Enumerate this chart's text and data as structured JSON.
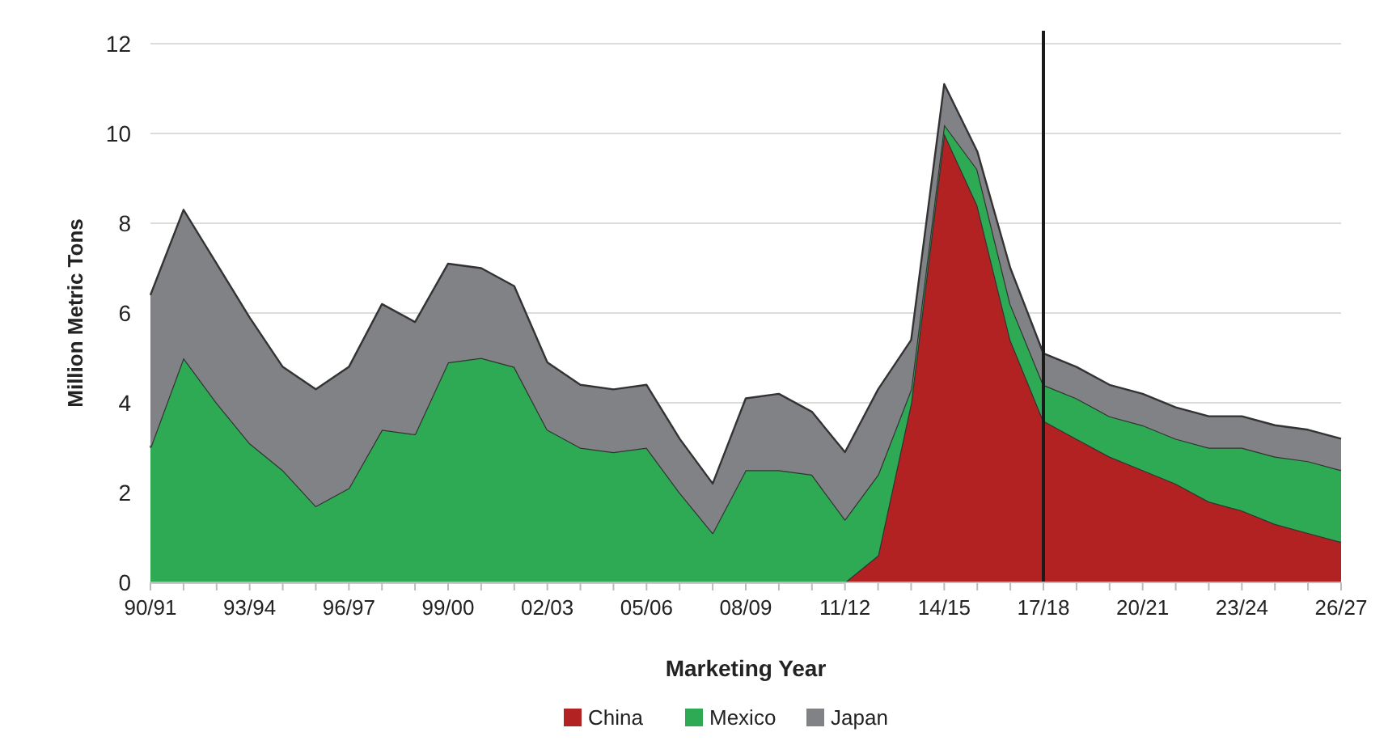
{
  "chart_data": {
    "type": "area",
    "stacked": true,
    "xlabel": "Marketing Year",
    "ylabel": "Million Metric Tons",
    "categories": [
      "90/91",
      null,
      null,
      "93/94",
      null,
      null,
      "96/97",
      null,
      null,
      "99/00",
      null,
      null,
      "02/03",
      null,
      null,
      "05/06",
      null,
      null,
      "08/09",
      null,
      null,
      "11/12",
      null,
      null,
      "14/15",
      null,
      null,
      "17/18",
      null,
      null,
      "20/21",
      null,
      null,
      "23/24",
      null,
      null,
      "26/27"
    ],
    "series": [
      {
        "name": "China",
        "color": "#b22222",
        "values": [
          0,
          0,
          0,
          0,
          0,
          0,
          0,
          0,
          0,
          0,
          0,
          0,
          0,
          0,
          0,
          0,
          0,
          0,
          0,
          0,
          0,
          0,
          0.6,
          4.0,
          10.0,
          8.4,
          5.4,
          3.6,
          3.2,
          2.8,
          2.5,
          2.2,
          1.8,
          1.6,
          1.3,
          1.1,
          0.9
        ]
      },
      {
        "name": "Mexico",
        "color": "#2eaa55",
        "values": [
          3.0,
          5.0,
          4.0,
          3.1,
          2.5,
          1.7,
          2.1,
          3.4,
          3.3,
          4.9,
          5.0,
          4.8,
          3.4,
          3.0,
          2.9,
          3.0,
          2.0,
          1.1,
          2.5,
          2.5,
          2.4,
          1.4,
          1.8,
          0.3,
          0.2,
          0.8,
          0.8,
          0.8,
          0.9,
          0.9,
          1.0,
          1.0,
          1.2,
          1.4,
          1.5,
          1.6,
          1.6
        ]
      },
      {
        "name": "Japan",
        "color": "#808285",
        "values": [
          3.4,
          3.3,
          3.1,
          2.8,
          2.3,
          2.6,
          2.7,
          2.8,
          2.5,
          2.2,
          2.0,
          1.8,
          1.5,
          1.4,
          1.4,
          1.4,
          1.2,
          1.1,
          1.6,
          1.7,
          1.4,
          1.5,
          1.9,
          1.1,
          0.9,
          0.4,
          0.8,
          0.7,
          0.7,
          0.7,
          0.7,
          0.7,
          0.7,
          0.7,
          0.7,
          0.7,
          0.7
        ]
      }
    ],
    "ylim": [
      0,
      12
    ],
    "yticks": [
      0,
      2,
      4,
      6,
      8,
      10,
      12
    ],
    "grid": "y",
    "legend": "bottom",
    "ref_lines": [
      {
        "axis": "x",
        "value": "17/18",
        "color": "#1a1a1a"
      }
    ]
  }
}
